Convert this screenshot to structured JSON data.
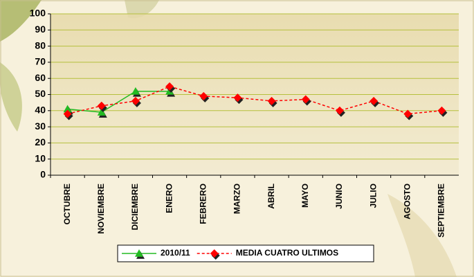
{
  "chart_data": {
    "type": "line",
    "categories": [
      "OCTUBRE",
      "NOVIEMBRE",
      "DICIEMBRE",
      "ENERO",
      "FEBRERO",
      "MARZO",
      "ABRIL",
      "MAYO",
      "JUNIO",
      "JULIO",
      "AGOSTO",
      "SEPTIEMBRE"
    ],
    "series": [
      {
        "name": "2010/11",
        "color": "#22bb22",
        "marker": "triangle",
        "dash": "solid",
        "values": [
          41,
          39,
          52,
          52,
          null,
          null,
          null,
          null,
          null,
          null,
          null,
          null
        ]
      },
      {
        "name": "MEDIA CUATRO ULTIMOS",
        "color": "#ff0000",
        "marker": "diamond",
        "dash": "dashed",
        "values": [
          38,
          43,
          46,
          55,
          49,
          48,
          46,
          47,
          40,
          46,
          38,
          40
        ]
      }
    ],
    "ylim": [
      0,
      100
    ],
    "yticks": [
      0,
      10,
      20,
      30,
      40,
      50,
      60,
      70,
      80,
      90,
      100
    ],
    "grid": true,
    "legend": "bottom"
  }
}
